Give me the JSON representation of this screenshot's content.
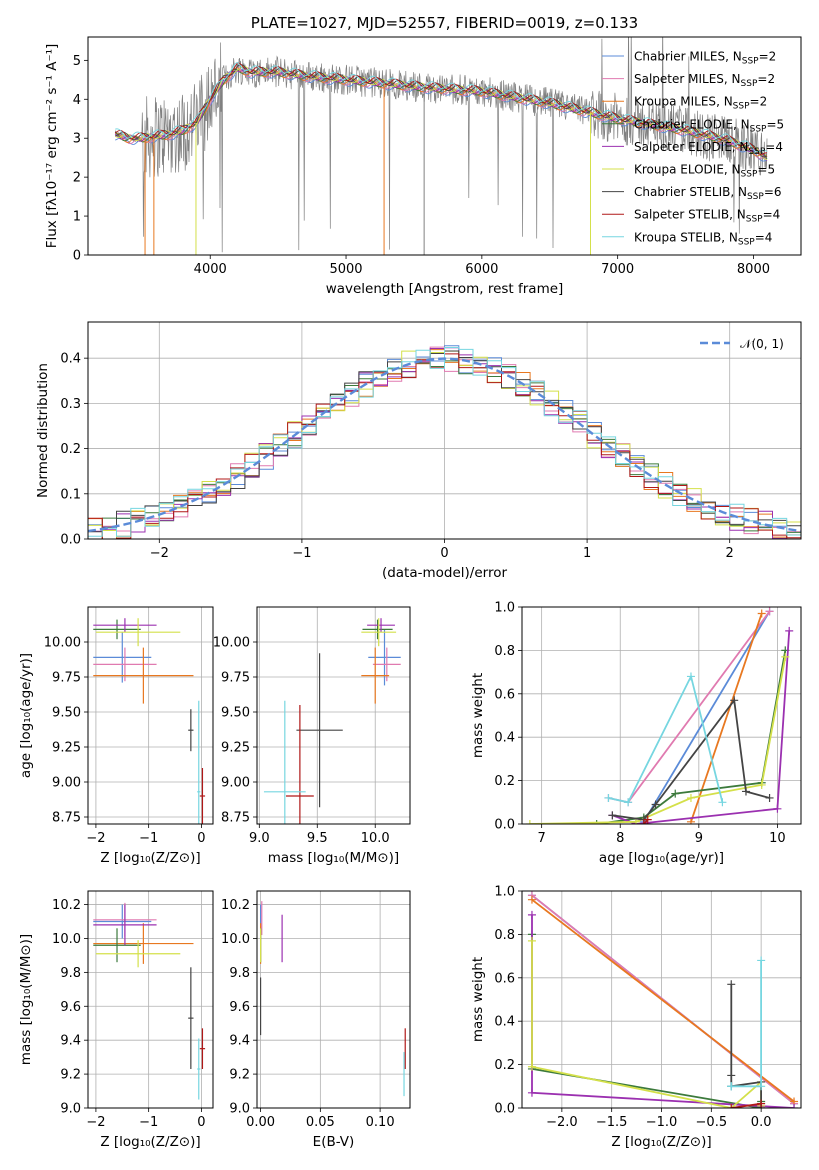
{
  "title": "PLATE=1027, MJD=52557, FIBERID=0019, z=0.133",
  "models": [
    {
      "name": "Chabrier MILES",
      "nssp": "2",
      "color": "#5b8bd8"
    },
    {
      "name": "Salpeter MILES",
      "nssp": "2",
      "color": "#e07ab0"
    },
    {
      "name": "Kroupa MILES",
      "nssp": "2",
      "color": "#e87820"
    },
    {
      "name": "Chabrier ELODIE",
      "nssp": "5",
      "color": "#3c7a3c"
    },
    {
      "name": "Salpeter ELODIE",
      "nssp": "4",
      "color": "#9b30b0"
    },
    {
      "name": "Kroupa ELODIE",
      "nssp": "5",
      "color": "#d4e04a"
    },
    {
      "name": "Chabrier STELIB",
      "nssp": "6",
      "color": "#444444"
    },
    {
      "name": "Salpeter STELIB",
      "nssp": "4",
      "color": "#b01818"
    },
    {
      "name": "Kroupa STELIB",
      "nssp": "4",
      "color": "#76d6e0"
    }
  ],
  "chart_data": [
    {
      "type": "line",
      "xlabel": "wavelength [Angstrom, rest frame]",
      "ylabel": "Flux [fλ10⁻¹⁷ erg cm⁻² s⁻¹ A⁻¹]",
      "xlim": [
        3100,
        8350
      ],
      "ylim": [
        0,
        5.6
      ],
      "xticks": [
        "4000",
        "5000",
        "6000",
        "7000",
        "8000"
      ],
      "yticks": [
        "0",
        "1",
        "2",
        "3",
        "4",
        "5"
      ],
      "continuum": {
        "x": [
          3300,
          3400,
          3500,
          3600,
          3700,
          3800,
          3900,
          4000,
          4100,
          4200,
          4300,
          4500,
          4700,
          5000,
          5300,
          5600,
          6000,
          6500,
          7000,
          7500,
          7800,
          8000,
          8100
        ],
        "y": [
          3.1,
          3.0,
          3.0,
          3.05,
          3.1,
          3.2,
          3.4,
          4.0,
          4.5,
          4.8,
          4.7,
          4.7,
          4.6,
          4.5,
          4.4,
          4.3,
          4.2,
          3.9,
          3.5,
          3.2,
          2.95,
          2.7,
          2.5
        ]
      },
      "series_names": [
        "Chabrier MILES",
        "Salpeter MILES",
        "Kroupa MILES",
        "Chabrier ELODIE",
        "Salpeter ELODIE",
        "Kroupa ELODIE",
        "Chabrier STELIB",
        "Salpeter STELIB",
        "Kroupa STELIB"
      ]
    },
    {
      "type": "line",
      "xlabel": "(data-model)/error",
      "ylabel": "Normed distribution",
      "xlim": [
        -2.5,
        2.5
      ],
      "ylim": [
        0,
        0.48
      ],
      "xticks": [
        "−2",
        "−1",
        "0",
        "1",
        "2"
      ],
      "yticks": [
        "0.0",
        "0.1",
        "0.2",
        "0.3",
        "0.4"
      ],
      "legend": "𝒩(0, 1)",
      "reference_curve": {
        "mean": 0,
        "sigma": 1
      }
    },
    {
      "type": "scatter",
      "xlabel": "Z [log₁₀(Z/Z⊙)]",
      "ylabel": "age  [log₁₀(age/yr)]",
      "xlim": [
        -2.15,
        0.22
      ],
      "ylim": [
        8.7,
        10.25
      ],
      "xticks": [
        "−2",
        "−1",
        "0"
      ],
      "yticks": [
        "8.75",
        "9.00",
        "9.25",
        "9.50",
        "9.75",
        "10.00"
      ],
      "points": [
        {
          "model": "Chabrier MILES",
          "x": -1.5,
          "xerr": 0.55,
          "y": 9.89,
          "yerr": 0.18
        },
        {
          "model": "Salpeter MILES",
          "x": -1.45,
          "xerr": 0.6,
          "y": 9.84,
          "yerr": 0.12
        },
        {
          "model": "Kroupa MILES",
          "x": -1.1,
          "xerr": 0.95,
          "y": 9.76,
          "yerr": 0.2
        },
        {
          "model": "Chabrier ELODIE",
          "x": -1.6,
          "xerr": 0.45,
          "y": 10.09,
          "yerr": 0.07
        },
        {
          "model": "Salpeter ELODIE",
          "x": -1.45,
          "xerr": 0.6,
          "y": 10.12,
          "yerr": 0.05
        },
        {
          "model": "Kroupa ELODIE",
          "x": -1.2,
          "xerr": 0.8,
          "y": 10.07,
          "yerr": 0.1
        },
        {
          "model": "Chabrier STELIB",
          "x": -0.2,
          "xerr": 0.05,
          "y": 9.37,
          "yerr": 0.15
        },
        {
          "model": "Salpeter STELIB",
          "x": 0.02,
          "xerr": 0.05,
          "y": 8.9,
          "yerr": 0.2
        },
        {
          "model": "Kroupa STELIB",
          "x": -0.05,
          "xerr": 0.03,
          "y": 8.93,
          "yerr": 0.65
        }
      ]
    },
    {
      "type": "scatter",
      "xlabel": "mass [log₁₀(M/M⊙)]",
      "ylabel": "",
      "xlim": [
        8.98,
        10.3
      ],
      "ylim": [
        8.7,
        10.25
      ],
      "xticks": [
        "9.0",
        "9.5",
        "10.0"
      ],
      "yticks": [
        "8.75",
        "9.00",
        "9.25",
        "9.50",
        "9.75",
        "10.00"
      ],
      "points": [
        {
          "model": "Chabrier MILES",
          "x": 10.08,
          "xerr": 0.14,
          "y": 9.89,
          "yerr": 0.2
        },
        {
          "model": "Salpeter MILES",
          "x": 10.1,
          "xerr": 0.12,
          "y": 9.84,
          "yerr": 0.12
        },
        {
          "model": "Kroupa MILES",
          "x": 10.0,
          "xerr": 0.12,
          "y": 9.76,
          "yerr": 0.2
        },
        {
          "model": "Chabrier ELODIE",
          "x": 10.02,
          "xerr": 0.13,
          "y": 10.09,
          "yerr": 0.07
        },
        {
          "model": "Salpeter ELODIE",
          "x": 10.05,
          "xerr": 0.12,
          "y": 10.12,
          "yerr": 0.05
        },
        {
          "model": "Kroupa ELODIE",
          "x": 10.03,
          "xerr": 0.15,
          "y": 10.07,
          "yerr": 0.1
        },
        {
          "model": "Chabrier STELIB",
          "x": 9.52,
          "xerr": 0.2,
          "y": 9.37,
          "yerr": 0.55
        },
        {
          "model": "Salpeter STELIB",
          "x": 9.35,
          "xerr": 0.12,
          "y": 8.9,
          "yerr": 0.65
        },
        {
          "model": "Kroupa STELIB",
          "x": 9.22,
          "xerr": 0.18,
          "y": 8.93,
          "yerr": 0.65
        }
      ]
    },
    {
      "type": "line",
      "xlabel": "age  [log₁₀(age/yr)]",
      "ylabel": "mass weight",
      "xlim": [
        6.75,
        10.3
      ],
      "ylim": [
        0,
        1.0
      ],
      "xticks": [
        "7",
        "8",
        "9",
        "10"
      ],
      "yticks": [
        "0.0",
        "0.2",
        "0.4",
        "0.6",
        "0.8",
        "1.0"
      ],
      "series": [
        {
          "name": "Chabrier MILES",
          "x": [
            8.3,
            9.9
          ],
          "y": [
            0.01,
            0.98
          ]
        },
        {
          "name": "Salpeter MILES",
          "x": [
            7.85,
            8.1,
            9.9
          ],
          "y": [
            0.12,
            0.1,
            0.98
          ]
        },
        {
          "name": "Kroupa MILES",
          "x": [
            8.9,
            9.8
          ],
          "y": [
            0.01,
            0.97
          ]
        },
        {
          "name": "Chabrier ELODIE",
          "x": [
            7.7,
            8.3,
            8.7,
            9.8,
            10.1
          ],
          "y": [
            0.0,
            0.03,
            0.14,
            0.19,
            0.8
          ]
        },
        {
          "name": "Salpeter ELODIE",
          "x": [
            7.9,
            8.2,
            10.0,
            10.15
          ],
          "y": [
            0.04,
            0.0,
            0.07,
            0.89
          ]
        },
        {
          "name": "Kroupa ELODIE",
          "x": [
            6.85,
            8.2,
            8.9,
            9.8,
            10.1
          ],
          "y": [
            0.0,
            0.01,
            0.12,
            0.18,
            0.77
          ]
        },
        {
          "name": "Chabrier STELIB",
          "x": [
            7.9,
            8.3,
            8.45,
            9.45,
            9.6,
            9.9
          ],
          "y": [
            0.04,
            0.02,
            0.09,
            0.57,
            0.15,
            0.12
          ]
        },
        {
          "name": "Salpeter STELIB",
          "x": [
            8.3,
            8.35
          ],
          "y": [
            0.0,
            0.02
          ]
        },
        {
          "name": "Kroupa STELIB",
          "x": [
            7.85,
            8.1,
            8.9,
            9.3
          ],
          "y": [
            0.12,
            0.1,
            0.68,
            0.1
          ]
        }
      ]
    },
    {
      "type": "scatter",
      "xlabel": "Z [log₁₀(Z/Z⊙)]",
      "ylabel": "mass [log₁₀(M/M⊙)]",
      "xlim": [
        -2.15,
        0.22
      ],
      "ylim": [
        9.0,
        10.28
      ],
      "xticks": [
        "−2",
        "−1",
        "0"
      ],
      "yticks": [
        "9.0",
        "9.2",
        "9.4",
        "9.6",
        "9.8",
        "10.0",
        "10.2"
      ],
      "points": [
        {
          "model": "Chabrier MILES",
          "x": -1.5,
          "xerr": 0.55,
          "y": 10.1,
          "yerr": 0.1
        },
        {
          "model": "Salpeter MILES",
          "x": -1.45,
          "xerr": 0.6,
          "y": 10.11,
          "yerr": 0.1
        },
        {
          "model": "Kroupa MILES",
          "x": -1.1,
          "xerr": 0.95,
          "y": 9.97,
          "yerr": 0.12
        },
        {
          "model": "Chabrier ELODIE",
          "x": -1.6,
          "xerr": 0.45,
          "y": 9.96,
          "yerr": 0.1
        },
        {
          "model": "Salpeter ELODIE",
          "x": -1.45,
          "xerr": 0.6,
          "y": 10.08,
          "yerr": 0.12
        },
        {
          "model": "Kroupa ELODIE",
          "x": -1.2,
          "xerr": 0.8,
          "y": 9.91,
          "yerr": 0.08
        },
        {
          "model": "Chabrier STELIB",
          "x": -0.2,
          "xerr": 0.05,
          "y": 9.53,
          "yerr": 0.3
        },
        {
          "model": "Salpeter STELIB",
          "x": 0.02,
          "xerr": 0.05,
          "y": 9.35,
          "yerr": 0.12
        },
        {
          "model": "Kroupa STELIB",
          "x": -0.05,
          "xerr": 0.03,
          "y": 9.23,
          "yerr": 0.18
        }
      ]
    },
    {
      "type": "scatter",
      "xlabel": "E(B-V)",
      "ylabel": "",
      "xlim": [
        -0.003,
        0.125
      ],
      "ylim": [
        9.0,
        10.28
      ],
      "xticks": [
        "0.00",
        "0.05",
        "0.10"
      ],
      "yticks": [
        "9.0",
        "9.2",
        "9.4",
        "9.6",
        "9.8",
        "10.0",
        "10.2"
      ],
      "points": [
        {
          "model": "Chabrier MILES",
          "x": 0.0,
          "y": 10.1,
          "yerr": 0.1
        },
        {
          "model": "Salpeter MILES",
          "x": 0.001,
          "y": 10.12,
          "yerr": 0.1
        },
        {
          "model": "Kroupa MILES",
          "x": 0.0,
          "y": 9.97,
          "yerr": 0.12
        },
        {
          "model": "Chabrier ELODIE",
          "x": 0.0,
          "y": 9.96,
          "yerr": 0.1
        },
        {
          "model": "Salpeter ELODIE",
          "x": 0.018,
          "y": 10.0,
          "yerr": 0.14
        },
        {
          "model": "Kroupa ELODIE",
          "x": 0.0,
          "y": 9.96,
          "yerr": 0.1
        },
        {
          "model": "Chabrier STELIB",
          "x": 0.0,
          "y": 9.6,
          "yerr": 0.17
        },
        {
          "model": "Salpeter STELIB",
          "x": 0.121,
          "y": 9.35,
          "yerr": 0.12
        },
        {
          "model": "Kroupa STELIB",
          "x": 0.12,
          "y": 9.2,
          "yerr": 0.13
        }
      ]
    },
    {
      "type": "line",
      "xlabel": "Z [log₁₀(Z/Z⊙)]",
      "ylabel": "mass weight",
      "xlim": [
        -2.4,
        0.4
      ],
      "ylim": [
        0,
        1.0
      ],
      "xticks": [
        "−2.0",
        "−1.5",
        "−1.0",
        "−0.5",
        "0.0"
      ],
      "yticks": [
        "0.0",
        "0.2",
        "0.4",
        "0.6",
        "0.8",
        "1.0"
      ],
      "series": [
        {
          "name": "Chabrier MILES",
          "x": [
            -2.3,
            0.33
          ],
          "y": [
            0.98,
            0.02
          ]
        },
        {
          "name": "Salpeter MILES",
          "x": [
            -2.3,
            0.33
          ],
          "y": [
            0.98,
            0.02
          ]
        },
        {
          "name": "Kroupa MILES",
          "x": [
            -2.3,
            0.33
          ],
          "y": [
            0.96,
            0.03
          ]
        },
        {
          "name": "Chabrier ELODIE",
          "x": [
            -2.3,
            -2.3,
            0.0,
            0.0
          ],
          "y": [
            0.8,
            0.18,
            0.0,
            0.03
          ]
        },
        {
          "name": "Salpeter ELODIE",
          "x": [
            -2.3,
            -2.3,
            0.33
          ],
          "y": [
            0.89,
            0.07,
            0.0
          ]
        },
        {
          "name": "Kroupa ELODIE",
          "x": [
            -2.3,
            -2.3,
            -0.3,
            0.0,
            0.0
          ],
          "y": [
            0.77,
            0.19,
            0.0,
            0.12,
            0.01
          ]
        },
        {
          "name": "Chabrier STELIB",
          "x": [
            -0.3,
            -0.3,
            -0.3,
            0.0,
            0.0
          ],
          "y": [
            0.57,
            0.15,
            0.1,
            0.12,
            0.0
          ]
        },
        {
          "name": "Salpeter STELIB",
          "x": [
            -0.3,
            0.0
          ],
          "y": [
            0.0,
            0.02
          ]
        },
        {
          "name": "Kroupa STELIB",
          "x": [
            -0.3,
            -0.3,
            0.0,
            0.0
          ],
          "y": [
            0.1,
            0.1,
            0.1,
            0.68
          ]
        }
      ]
    }
  ]
}
